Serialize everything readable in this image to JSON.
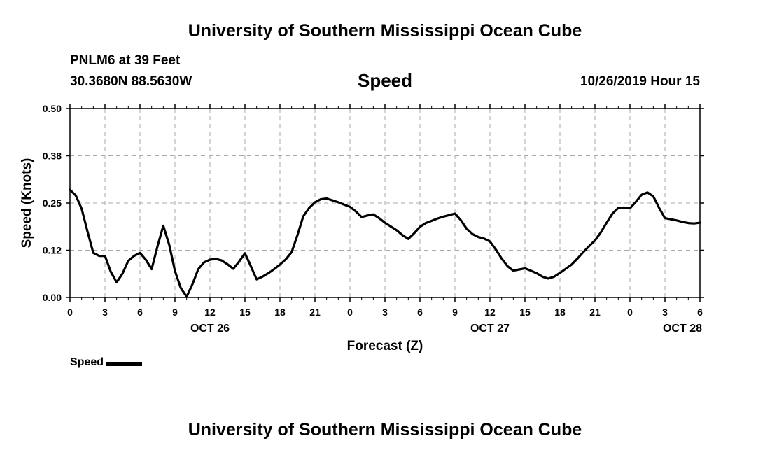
{
  "header": {
    "title": "University of Southern Mississippi Ocean Cube",
    "station": "PNLM6 at 39 Feet",
    "coordinates": "30.3680N 88.5630W",
    "chart_title": "Speed",
    "datetime": "10/26/2019 Hour 15"
  },
  "footer": {
    "title": "University of Southern Mississippi Ocean Cube"
  },
  "legend": {
    "label": "Speed",
    "color": "#000000"
  },
  "chart_data": {
    "type": "line",
    "title": "Speed",
    "xlabel": "Forecast (Z)",
    "ylabel": "Speed (Knots)",
    "ylim": [
      0.0,
      0.5
    ],
    "yticks": [
      "0.00",
      "0.12",
      "0.25",
      "0.38",
      "0.50"
    ],
    "ytick_values": [
      0.0,
      0.125,
      0.25,
      0.375,
      0.5
    ],
    "xlim": [
      0,
      54
    ],
    "xtick_hours": [
      0,
      3,
      6,
      9,
      12,
      15,
      18,
      21,
      24,
      27,
      30,
      33,
      36,
      39,
      42,
      45,
      48,
      51,
      54
    ],
    "xtick_labels": [
      "0",
      "3",
      "6",
      "9",
      "12",
      "15",
      "18",
      "21",
      "0",
      "3",
      "6",
      "9",
      "12",
      "15",
      "18",
      "21",
      "0",
      "3",
      "6"
    ],
    "date_labels": [
      {
        "hour": 12,
        "label": "OCT 26"
      },
      {
        "hour": 36,
        "label": "OCT 27"
      },
      {
        "hour": 52.5,
        "label": "OCT 28"
      }
    ],
    "grid": true,
    "legend_placement": "bottom-left",
    "series": [
      {
        "name": "Speed",
        "color": "#000000",
        "x": [
          0,
          0.5,
          1,
          1.5,
          2,
          2.5,
          3,
          3.5,
          4,
          4.5,
          5,
          5.5,
          6,
          6.5,
          7,
          7.5,
          8,
          8.5,
          9,
          9.5,
          10,
          10.5,
          11,
          11.5,
          12,
          12.5,
          13,
          13.5,
          14,
          14.5,
          15,
          15.5,
          16,
          16.5,
          17,
          17.5,
          18,
          18.5,
          19,
          19.5,
          20,
          20.5,
          21,
          21.5,
          22,
          22.5,
          23,
          23.5,
          24,
          24.5,
          25,
          25.5,
          26,
          26.5,
          27,
          27.5,
          28,
          28.5,
          29,
          29.5,
          30,
          30.5,
          31,
          31.5,
          32,
          32.5,
          33,
          33.5,
          34,
          34.5,
          35,
          35.5,
          36,
          36.5,
          37,
          37.5,
          38,
          38.5,
          39,
          39.5,
          40,
          40.5,
          41,
          41.5,
          42,
          42.5,
          43,
          43.5,
          44,
          44.5,
          45,
          45.5,
          46,
          46.5,
          47,
          47.5,
          48,
          48.5,
          49,
          49.5,
          50,
          50.5,
          51,
          51.5,
          52,
          52.5,
          53,
          53.5,
          54
        ],
        "values": [
          0.285,
          0.27,
          0.235,
          0.175,
          0.118,
          0.11,
          0.11,
          0.068,
          0.04,
          0.063,
          0.097,
          0.11,
          0.118,
          0.1,
          0.075,
          0.135,
          0.19,
          0.14,
          0.07,
          0.025,
          0.002,
          0.035,
          0.075,
          0.093,
          0.1,
          0.102,
          0.098,
          0.088,
          0.076,
          0.095,
          0.117,
          0.083,
          0.048,
          0.055,
          0.064,
          0.075,
          0.087,
          0.101,
          0.12,
          0.165,
          0.215,
          0.237,
          0.252,
          0.26,
          0.262,
          0.257,
          0.252,
          0.246,
          0.24,
          0.228,
          0.213,
          0.217,
          0.22,
          0.21,
          0.198,
          0.188,
          0.178,
          0.165,
          0.155,
          0.17,
          0.187,
          0.197,
          0.203,
          0.209,
          0.214,
          0.218,
          0.222,
          0.205,
          0.182,
          0.168,
          0.16,
          0.156,
          0.148,
          0.127,
          0.103,
          0.083,
          0.071,
          0.074,
          0.077,
          0.071,
          0.064,
          0.055,
          0.05,
          0.055,
          0.065,
          0.076,
          0.087,
          0.103,
          0.12,
          0.136,
          0.151,
          0.172,
          0.198,
          0.222,
          0.237,
          0.238,
          0.236,
          0.253,
          0.272,
          0.278,
          0.268,
          0.237,
          0.21,
          0.207,
          0.204,
          0.2,
          0.197,
          0.196,
          0.198
        ]
      }
    ]
  }
}
